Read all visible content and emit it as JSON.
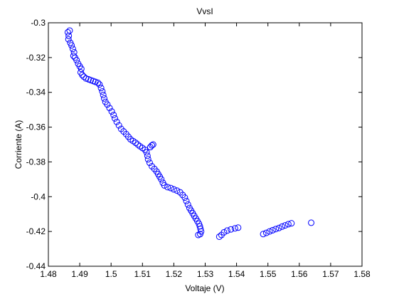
{
  "chart_data": {
    "type": "scatter",
    "title": "VvsI",
    "xlabel": "Voltaje (V)",
    "ylabel": "Corriente (A)",
    "xlim": [
      1.48,
      1.58
    ],
    "ylim": [
      -0.44,
      -0.3
    ],
    "xticks": [
      "1.48",
      "1.49",
      "1.5",
      "1.51",
      "1.52",
      "1.53",
      "1.54",
      "1.55",
      "1.56",
      "1.57",
      "1.58"
    ],
    "yticks": [
      "-0.3",
      "-0.32",
      "-0.34",
      "-0.36",
      "-0.38",
      "-0.4",
      "-0.42",
      "-0.44"
    ],
    "grid": false,
    "marker": "open-circle",
    "marker_color": "#0000ff",
    "series": [
      {
        "points": [
          [
            1.4862,
            -0.3055
          ],
          [
            1.4865,
            -0.3075
          ],
          [
            1.4868,
            -0.3045
          ],
          [
            1.4864,
            -0.3095
          ],
          [
            1.487,
            -0.3115
          ],
          [
            1.4874,
            -0.313
          ],
          [
            1.4878,
            -0.315
          ],
          [
            1.4882,
            -0.317
          ],
          [
            1.488,
            -0.319
          ],
          [
            1.4885,
            -0.32
          ],
          [
            1.489,
            -0.3215
          ],
          [
            1.4895,
            -0.3235
          ],
          [
            1.49,
            -0.325
          ],
          [
            1.4905,
            -0.3265
          ],
          [
            1.4903,
            -0.3285
          ],
          [
            1.4908,
            -0.33
          ],
          [
            1.4913,
            -0.331
          ],
          [
            1.492,
            -0.332
          ],
          [
            1.4928,
            -0.3325
          ],
          [
            1.4935,
            -0.333
          ],
          [
            1.4943,
            -0.3335
          ],
          [
            1.495,
            -0.334
          ],
          [
            1.4958,
            -0.3345
          ],
          [
            1.4963,
            -0.3355
          ],
          [
            1.4968,
            -0.3375
          ],
          [
            1.4972,
            -0.3395
          ],
          [
            1.4975,
            -0.3415
          ],
          [
            1.4978,
            -0.3435
          ],
          [
            1.4982,
            -0.3455
          ],
          [
            1.4988,
            -0.347
          ],
          [
            1.4995,
            -0.349
          ],
          [
            1.5002,
            -0.351
          ],
          [
            1.5008,
            -0.353
          ],
          [
            1.5012,
            -0.355
          ],
          [
            1.5018,
            -0.357
          ],
          [
            1.5025,
            -0.359
          ],
          [
            1.5032,
            -0.361
          ],
          [
            1.504,
            -0.3625
          ],
          [
            1.5048,
            -0.364
          ],
          [
            1.5055,
            -0.3655
          ],
          [
            1.5062,
            -0.367
          ],
          [
            1.507,
            -0.368
          ],
          [
            1.5078,
            -0.369
          ],
          [
            1.5085,
            -0.37
          ],
          [
            1.5092,
            -0.371
          ],
          [
            1.51,
            -0.372
          ],
          [
            1.5108,
            -0.373
          ],
          [
            1.5113,
            -0.3745
          ],
          [
            1.5116,
            -0.3765
          ],
          [
            1.5118,
            -0.3785
          ],
          [
            1.5125,
            -0.3715
          ],
          [
            1.513,
            -0.3705
          ],
          [
            1.5134,
            -0.37
          ],
          [
            1.5123,
            -0.3805
          ],
          [
            1.513,
            -0.3825
          ],
          [
            1.5138,
            -0.384
          ],
          [
            1.5145,
            -0.3855
          ],
          [
            1.515,
            -0.387
          ],
          [
            1.5155,
            -0.3885
          ],
          [
            1.516,
            -0.39
          ],
          [
            1.5165,
            -0.392
          ],
          [
            1.517,
            -0.3935
          ],
          [
            1.518,
            -0.3945
          ],
          [
            1.519,
            -0.395
          ],
          [
            1.52,
            -0.3958
          ],
          [
            1.521,
            -0.3965
          ],
          [
            1.522,
            -0.3975
          ],
          [
            1.5228,
            -0.399
          ],
          [
            1.5235,
            -0.4005
          ],
          [
            1.524,
            -0.4025
          ],
          [
            1.5245,
            -0.4045
          ],
          [
            1.525,
            -0.4065
          ],
          [
            1.5255,
            -0.408
          ],
          [
            1.526,
            -0.4095
          ],
          [
            1.5265,
            -0.411
          ],
          [
            1.527,
            -0.4125
          ],
          [
            1.5275,
            -0.414
          ],
          [
            1.528,
            -0.4155
          ],
          [
            1.5283,
            -0.417
          ],
          [
            1.5285,
            -0.4185
          ],
          [
            1.5287,
            -0.42
          ],
          [
            1.5284,
            -0.4215
          ],
          [
            1.5278,
            -0.422
          ],
          [
            1.5345,
            -0.423
          ],
          [
            1.5352,
            -0.422
          ],
          [
            1.536,
            -0.4205
          ],
          [
            1.537,
            -0.4195
          ],
          [
            1.5382,
            -0.4188
          ],
          [
            1.5395,
            -0.4182
          ],
          [
            1.5405,
            -0.4178
          ],
          [
            1.5485,
            -0.4215
          ],
          [
            1.5495,
            -0.4208
          ],
          [
            1.5505,
            -0.42
          ],
          [
            1.5515,
            -0.4193
          ],
          [
            1.5525,
            -0.4186
          ],
          [
            1.5535,
            -0.418
          ],
          [
            1.5545,
            -0.4172
          ],
          [
            1.5555,
            -0.4165
          ],
          [
            1.5565,
            -0.4158
          ],
          [
            1.5575,
            -0.4153
          ],
          [
            1.5638,
            -0.415
          ]
        ]
      }
    ]
  }
}
